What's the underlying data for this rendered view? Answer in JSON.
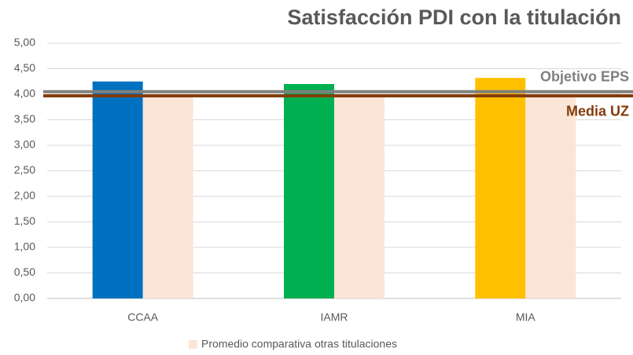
{
  "chart_data": {
    "type": "bar",
    "title": "Satisfacción PDI con la titulación",
    "categories": [
      "CCAA",
      "IAMR",
      "MIA"
    ],
    "series": [
      {
        "colors": [
          "#0070c0",
          "#00b050",
          "#ffc000"
        ],
        "values": [
          4.25,
          4.2,
          4.32
        ]
      },
      {
        "name": "Promedio comparativa otras titulaciones",
        "color": "#fbe5d6",
        "values": [
          4.0,
          4.0,
          4.0
        ]
      }
    ],
    "reference_lines": [
      {
        "label": "Objetivo EPS",
        "value": 4.05,
        "color": "#808080"
      },
      {
        "label": "Media UZ",
        "value": 3.97,
        "color": "#843c0c"
      }
    ],
    "ylim": [
      0,
      5
    ],
    "yticks": [
      {
        "value": 0,
        "label": "0,00"
      },
      {
        "value": 0.5,
        "label": "0,50"
      },
      {
        "value": 1,
        "label": "1,00"
      },
      {
        "value": 1.5,
        "label": "1,50"
      },
      {
        "value": 2,
        "label": "2,00"
      },
      {
        "value": 2.5,
        "label": "2,50"
      },
      {
        "value": 3,
        "label": "3,00"
      },
      {
        "value": 3.5,
        "label": "3,50"
      },
      {
        "value": 4,
        "label": "4,00"
      },
      {
        "value": 4.5,
        "label": "4,50"
      },
      {
        "value": 5,
        "label": "5,00"
      }
    ],
    "grid": true,
    "legend": "bottom"
  }
}
